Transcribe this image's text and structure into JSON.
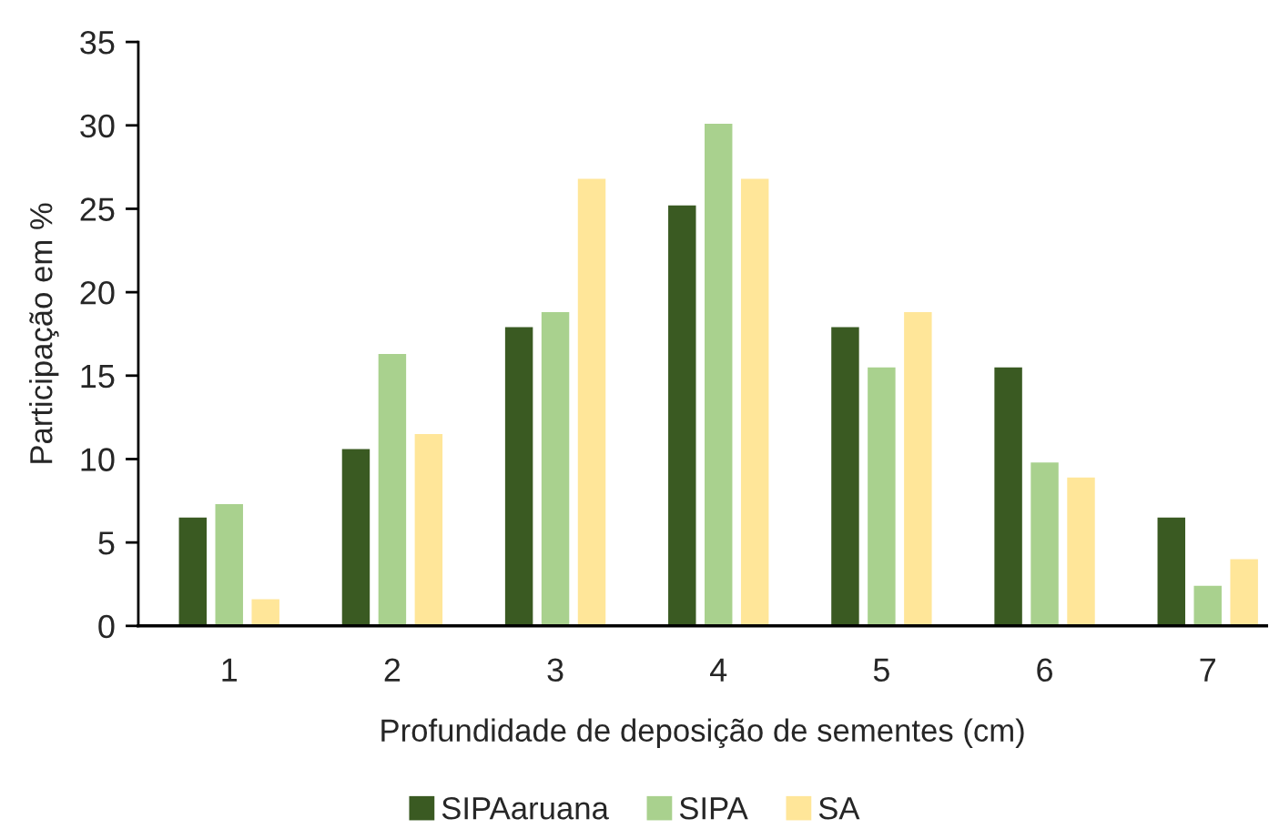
{
  "chart_data": {
    "type": "bar",
    "xlabel": "Profundidade de deposição de sementes (cm)",
    "ylabel": "Participação em %",
    "categories": [
      "1",
      "2",
      "3",
      "4",
      "5",
      "6",
      "7"
    ],
    "series": [
      {
        "name": "SIPAaruana",
        "color": "#3a5a22",
        "values": [
          6.5,
          10.6,
          17.9,
          25.2,
          17.9,
          15.5,
          6.5
        ]
      },
      {
        "name": "SIPA",
        "color": "#a9d18e",
        "values": [
          7.3,
          16.3,
          18.8,
          30.1,
          15.5,
          9.8,
          2.4
        ]
      },
      {
        "name": "SA",
        "color": "#ffe699",
        "values": [
          1.6,
          11.5,
          26.8,
          26.8,
          18.8,
          8.9,
          4.0
        ]
      }
    ],
    "ylim": [
      0,
      35
    ],
    "yticks": [
      0,
      5,
      10,
      15,
      20,
      25,
      30,
      35
    ],
    "legend": "bottom"
  }
}
